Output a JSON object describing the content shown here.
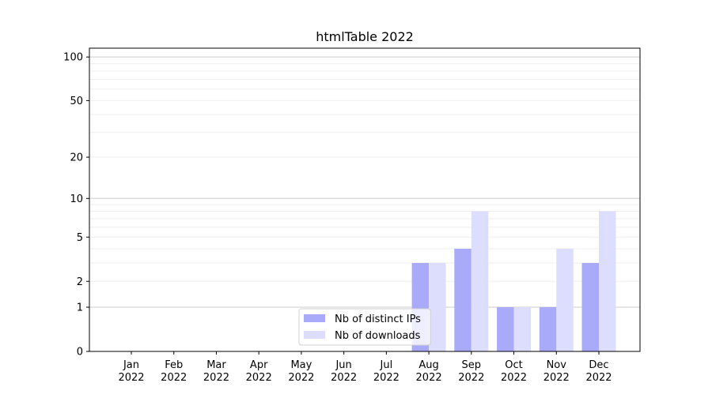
{
  "chart_data": {
    "type": "bar",
    "title": "htmlTable 2022",
    "xlabel": "",
    "ylabel": "",
    "categories": [
      "Jan\n2022",
      "Feb\n2022",
      "Mar\n2022",
      "Apr\n2022",
      "May\n2022",
      "Jun\n2022",
      "Jul\n2022",
      "Aug\n2022",
      "Sep\n2022",
      "Oct\n2022",
      "Nov\n2022",
      "Dec\n2022"
    ],
    "series": [
      {
        "name": "Nb of distinct IPs",
        "color": "#aaaafa",
        "values": [
          0,
          0,
          0,
          0,
          0,
          0,
          0,
          3,
          4,
          1,
          1,
          3
        ]
      },
      {
        "name": "Nb of downloads",
        "color": "#ddddfd",
        "values": [
          0,
          0,
          0,
          0,
          0,
          0,
          0,
          3,
          8,
          1,
          4,
          8
        ]
      }
    ],
    "yscale": "log10(1+y)",
    "ylim": [
      0,
      115
    ],
    "yticks": [
      0,
      1,
      2,
      5,
      10,
      20,
      50,
      100
    ],
    "ytick_labels": [
      "0",
      "1",
      "2",
      "5",
      "10",
      "20",
      "50",
      "100"
    ],
    "grid": true,
    "legend_position": "lower-center"
  }
}
